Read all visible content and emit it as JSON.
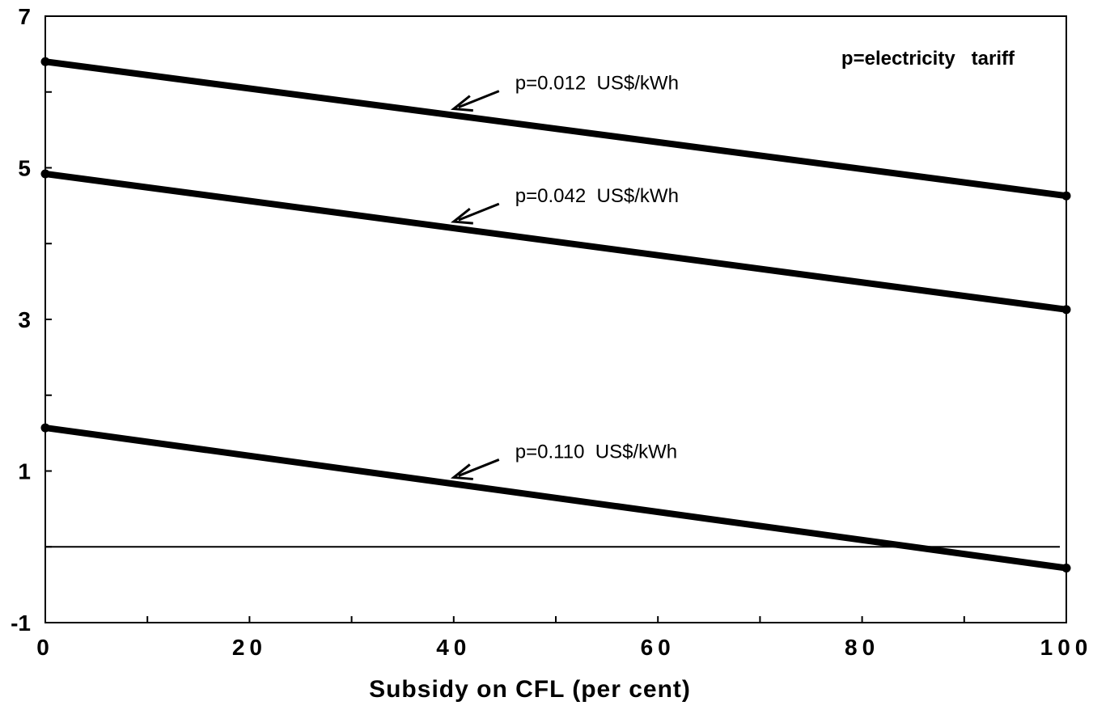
{
  "chart_data": {
    "type": "line",
    "title": "",
    "xlabel": "Subsidy on CFL (per cent)",
    "ylabel": "",
    "xlim": [
      0,
      100
    ],
    "ylim": [
      -1,
      7
    ],
    "x_ticks": [
      0,
      20,
      40,
      60,
      80,
      100
    ],
    "x_tick_labels": [
      "0",
      "20",
      "40",
      "60",
      "80",
      "100"
    ],
    "x_minor_step": 10,
    "y_ticks": [
      7,
      5,
      3,
      1,
      -1
    ],
    "y_tick_labels": [
      "7",
      "5",
      "3",
      "1",
      "-1"
    ],
    "y_minor_step": 1,
    "grid": false,
    "reference_line": 0,
    "series": [
      {
        "label": "p=0.012  US$/kWh",
        "x": [
          0,
          100
        ],
        "y": [
          6.4,
          4.63
        ],
        "label_anchor_x": 40
      },
      {
        "label": "p=0.042  US$/kWh",
        "x": [
          0,
          100
        ],
        "y": [
          4.92,
          3.13
        ],
        "label_anchor_x": 40
      },
      {
        "label": "p=0.110  US$/kWh",
        "x": [
          0,
          100
        ],
        "y": [
          1.57,
          -0.28
        ],
        "label_anchor_x": 40
      }
    ],
    "note": "p=electricity   tariff"
  }
}
